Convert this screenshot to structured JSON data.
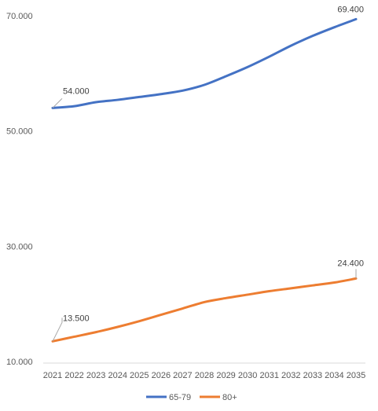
{
  "chart_data": {
    "type": "line",
    "title": "",
    "xlabel": "",
    "ylabel": "",
    "x": [
      "2021",
      "2022",
      "2023",
      "2024",
      "2025",
      "2026",
      "2027",
      "2028",
      "2029",
      "2030",
      "2031",
      "2032",
      "2033",
      "2034",
      "2035"
    ],
    "y_ticks": [
      "10.000",
      "30.000",
      "50.000",
      "70.000"
    ],
    "ylim": [
      10000,
      72000
    ],
    "grid": false,
    "legend_position": "bottom",
    "series": [
      {
        "name": "65-79",
        "color": "#4472C4",
        "values": [
          54000,
          54300,
          55000,
          55400,
          55900,
          56400,
          57000,
          58000,
          59500,
          61100,
          62900,
          64800,
          66500,
          68000,
          69400
        ],
        "labels": {
          "0": "54.000",
          "14": "69.400"
        }
      },
      {
        "name": "80+",
        "color": "#ED7D31",
        "values": [
          13500,
          14300,
          15100,
          16000,
          17000,
          18100,
          19200,
          20300,
          21000,
          21600,
          22200,
          22700,
          23200,
          23700,
          24400
        ],
        "labels": {
          "0": "13.500",
          "14": "24.400"
        }
      }
    ]
  }
}
